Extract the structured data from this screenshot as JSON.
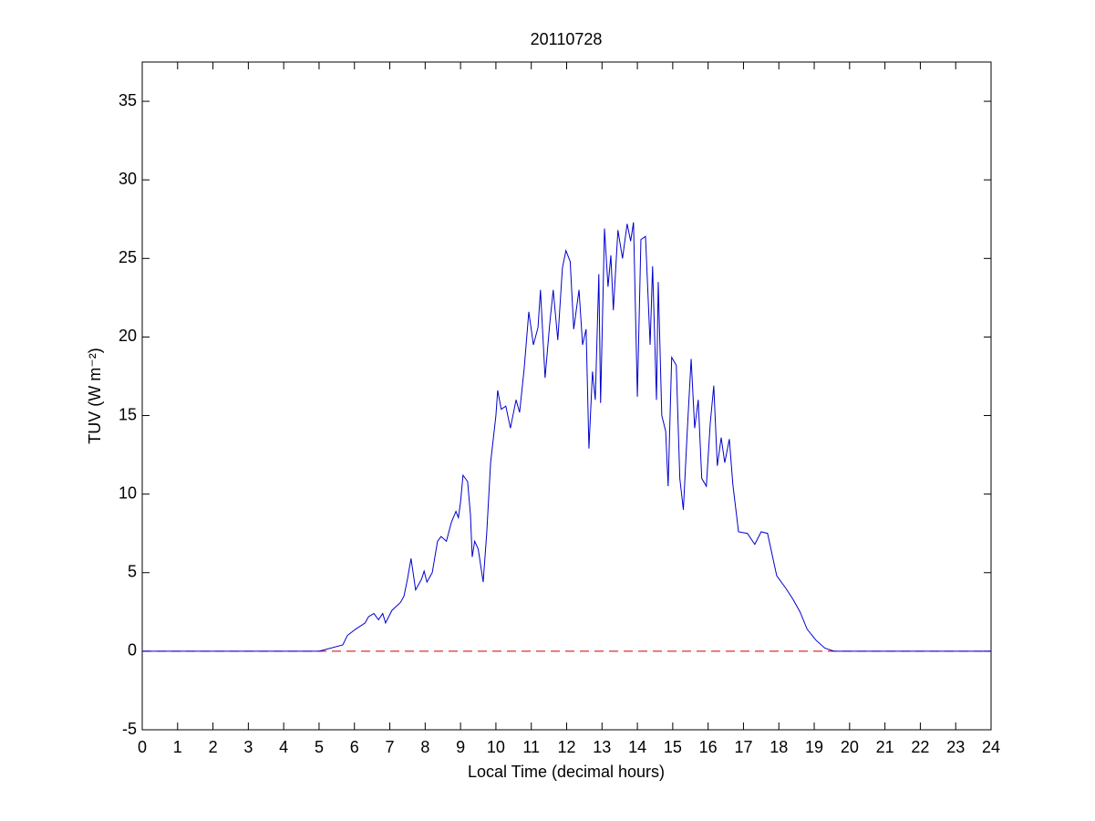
{
  "chart_data": {
    "type": "line",
    "title": "20110728",
    "xlabel": "Local Time (decimal hours)",
    "ylabel": "TUV (W m⁻²)",
    "xlim": [
      0,
      24
    ],
    "ylim": [
      -5,
      37.5
    ],
    "xticks": [
      0,
      1,
      2,
      3,
      4,
      5,
      6,
      7,
      8,
      9,
      10,
      11,
      12,
      13,
      14,
      15,
      16,
      17,
      18,
      19,
      20,
      21,
      22,
      23,
      24
    ],
    "yticks": [
      -5,
      0,
      5,
      10,
      15,
      20,
      25,
      30,
      35
    ],
    "series": [
      {
        "color": "#0000cc",
        "dashed": false,
        "x": [
          0,
          5.0,
          5.67,
          5.8,
          6.03,
          6.3,
          6.4,
          6.55,
          6.68,
          6.8,
          6.88,
          7.06,
          7.3,
          7.4,
          7.5,
          7.6,
          7.73,
          7.9,
          7.97,
          8.05,
          8.2,
          8.35,
          8.45,
          8.6,
          8.74,
          8.87,
          8.94,
          9.0,
          9.07,
          9.2,
          9.28,
          9.33,
          9.4,
          9.5,
          9.64,
          9.74,
          9.85,
          10.0,
          10.05,
          10.15,
          10.28,
          10.41,
          10.57,
          10.67,
          10.8,
          10.93,
          11.06,
          11.19,
          11.26,
          11.39,
          11.52,
          11.62,
          11.75,
          11.88,
          11.98,
          12.1,
          12.2,
          12.35,
          12.45,
          12.55,
          12.63,
          12.73,
          12.81,
          12.91,
          12.96,
          13.07,
          13.17,
          13.25,
          13.32,
          13.45,
          13.58,
          13.71,
          13.81,
          13.89,
          14.0,
          14.1,
          14.23,
          14.36,
          14.43,
          14.54,
          14.59,
          14.69,
          14.8,
          14.87,
          14.97,
          15.1,
          15.2,
          15.3,
          15.41,
          15.52,
          15.62,
          15.72,
          15.82,
          15.95,
          16.06,
          16.16,
          16.26,
          16.37,
          16.47,
          16.6,
          16.7,
          16.86,
          17.11,
          17.32,
          17.5,
          17.68,
          17.94,
          18.2,
          18.4,
          18.6,
          18.8,
          19.05,
          19.3,
          19.56,
          24
        ],
        "values": [
          0,
          0,
          0.4,
          1.0,
          1.4,
          1.8,
          2.2,
          2.4,
          2.0,
          2.4,
          1.8,
          2.6,
          3.1,
          3.5,
          4.6,
          5.9,
          3.9,
          4.6,
          5.1,
          4.4,
          5.0,
          7.0,
          7.3,
          7.0,
          8.2,
          8.9,
          8.5,
          9.5,
          11.2,
          10.8,
          8.7,
          6.0,
          7.0,
          6.5,
          4.4,
          7.5,
          12.0,
          15.0,
          16.6,
          15.4,
          15.6,
          14.2,
          16.0,
          15.2,
          18.0,
          21.6,
          19.5,
          20.6,
          23.0,
          17.4,
          20.8,
          23.0,
          19.8,
          24.4,
          25.5,
          24.8,
          20.5,
          23.0,
          19.5,
          20.5,
          12.9,
          17.8,
          16.0,
          24.0,
          15.8,
          26.9,
          23.2,
          25.2,
          21.7,
          26.8,
          25.0,
          27.2,
          26.1,
          27.3,
          16.2,
          26.2,
          26.4,
          19.5,
          24.5,
          16.0,
          23.5,
          15.0,
          14.0,
          10.5,
          18.7,
          18.2,
          11.0,
          9.0,
          14.0,
          18.6,
          14.2,
          16.0,
          11.0,
          10.5,
          14.5,
          16.9,
          11.8,
          13.6,
          12.0,
          13.5,
          10.6,
          7.6,
          7.5,
          6.8,
          7.6,
          7.5,
          4.8,
          4.0,
          3.3,
          2.5,
          1.4,
          0.7,
          0.2,
          0.0,
          0
        ]
      },
      {
        "color": "#cc0000",
        "dashed": true,
        "x": [
          0,
          24
        ],
        "values": [
          0,
          0
        ]
      }
    ]
  }
}
